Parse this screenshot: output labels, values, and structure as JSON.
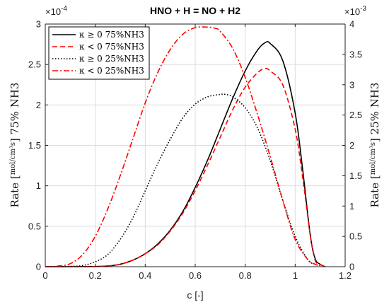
{
  "chart_data": {
    "type": "line",
    "title": "HNO + H = NO + H2",
    "xlabel": "c [-]",
    "ylabel_left": "Rate [mol/(cm³s)] 75% NH3",
    "ylabel_right": "Rate [mol/(cm³s)] 25% NH3",
    "ylabel_left_parts": {
      "pre": "Rate ",
      "num": "mol",
      "den": "cm³s",
      "post": " 75% NH3"
    },
    "ylabel_right_parts": {
      "pre": "Rate ",
      "num": "mol",
      "den": "cm³s",
      "post": " 25% NH3"
    },
    "left_exponent": "×10",
    "left_exponent_power": "-4",
    "right_exponent": "×10",
    "right_exponent_power": "-3",
    "xlim": [
      0,
      1.2
    ],
    "ylim_left": [
      0,
      3
    ],
    "ylim_right": [
      0,
      4
    ],
    "xticks": [
      "0",
      "0.2",
      "0.4",
      "0.6",
      "0.8",
      "1",
      "1.2"
    ],
    "yticks_left": [
      "0",
      "0.5",
      "1",
      "1.5",
      "2",
      "2.5",
      "3"
    ],
    "yticks_right": [
      "0",
      "0.5",
      "1",
      "1.5",
      "2",
      "2.5",
      "3",
      "3.5",
      "4"
    ],
    "grid": true,
    "legend_position": "top-left",
    "series": [
      {
        "name": "κ ≥ 0 75%NH3",
        "axis": "left",
        "color": "#000000",
        "style": "solid",
        "x": [
          0,
          0.1,
          0.2,
          0.25,
          0.3,
          0.35,
          0.4,
          0.45,
          0.5,
          0.55,
          0.6,
          0.65,
          0.7,
          0.75,
          0.8,
          0.85,
          0.88,
          0.9,
          0.95,
          1.0,
          1.03,
          1.06,
          1.08,
          1.1,
          1.12
        ],
        "y": [
          0,
          0,
          0.002,
          0.008,
          0.03,
          0.08,
          0.16,
          0.28,
          0.45,
          0.68,
          0.98,
          1.32,
          1.7,
          2.08,
          2.42,
          2.68,
          2.77,
          2.76,
          2.55,
          1.9,
          1.2,
          0.4,
          0.1,
          0.03,
          0
        ]
      },
      {
        "name": "κ < 0 75%NH3",
        "axis": "left",
        "color": "#ff0000",
        "style": "dashed",
        "x": [
          0,
          0.1,
          0.2,
          0.25,
          0.3,
          0.35,
          0.4,
          0.45,
          0.5,
          0.55,
          0.6,
          0.65,
          0.7,
          0.75,
          0.8,
          0.85,
          0.88,
          0.9,
          0.95,
          1.0,
          1.03,
          1.06,
          1.08,
          1.1,
          1.12
        ],
        "y": [
          0,
          0,
          0.002,
          0.008,
          0.03,
          0.08,
          0.16,
          0.27,
          0.44,
          0.66,
          0.94,
          1.26,
          1.6,
          1.94,
          2.22,
          2.4,
          2.45,
          2.42,
          2.25,
          1.7,
          1.1,
          0.4,
          0.08,
          0.03,
          0
        ]
      },
      {
        "name": "κ ≥ 0 25%NH3",
        "axis": "right",
        "color": "#000000",
        "style": "dotted",
        "x": [
          0,
          0.1,
          0.15,
          0.2,
          0.25,
          0.3,
          0.35,
          0.4,
          0.45,
          0.5,
          0.55,
          0.6,
          0.65,
          0.7,
          0.72,
          0.75,
          0.8,
          0.85,
          0.9,
          0.95,
          1.0,
          1.05,
          1.08,
          1.1
        ],
        "y": [
          0,
          0.005,
          0.02,
          0.08,
          0.2,
          0.45,
          0.8,
          1.25,
          1.7,
          2.1,
          2.45,
          2.68,
          2.8,
          2.84,
          2.84,
          2.8,
          2.62,
          2.28,
          1.75,
          1.1,
          0.5,
          0.12,
          0.04,
          0.02
        ]
      },
      {
        "name": "κ < 0 25%NH3",
        "axis": "right",
        "color": "#ff0000",
        "style": "dashdot",
        "x": [
          0,
          0.05,
          0.1,
          0.15,
          0.2,
          0.25,
          0.3,
          0.35,
          0.4,
          0.45,
          0.5,
          0.55,
          0.6,
          0.65,
          0.68,
          0.7,
          0.75,
          0.8,
          0.85,
          0.9,
          0.95,
          1.0,
          1.05,
          1.08,
          1.1
        ],
        "y": [
          0,
          0.01,
          0.05,
          0.2,
          0.5,
          0.95,
          1.5,
          2.1,
          2.7,
          3.2,
          3.58,
          3.83,
          3.94,
          3.95,
          3.93,
          3.88,
          3.6,
          3.12,
          2.5,
          1.82,
          1.1,
          0.45,
          0.12,
          0.04,
          0.01
        ]
      }
    ]
  }
}
